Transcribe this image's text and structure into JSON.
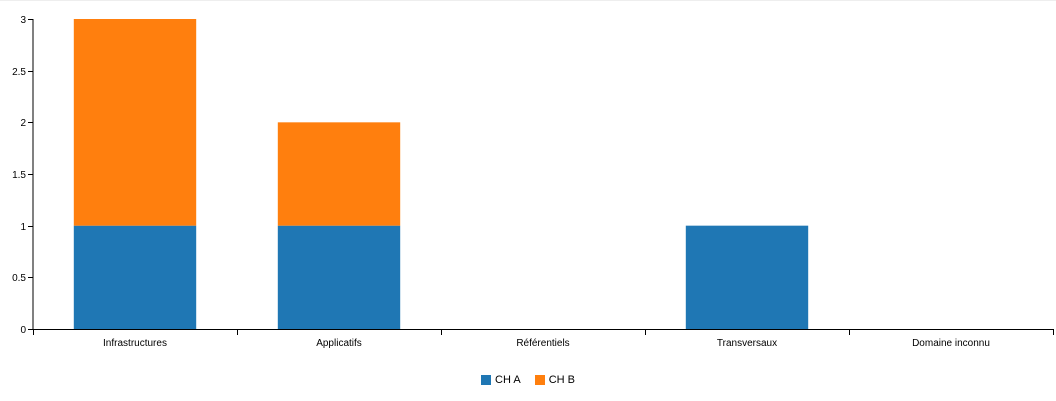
{
  "chart_data": {
    "type": "bar",
    "stacked": true,
    "categories": [
      "Infrastructures",
      "Applicatifs",
      "Référentiels",
      "Transversaux",
      "Domaine inconnu"
    ],
    "series": [
      {
        "name": "CH A",
        "color": "#1f77b4",
        "values": [
          1,
          1,
          0,
          1,
          0
        ]
      },
      {
        "name": "CH B",
        "color": "#ff7f0e",
        "values": [
          2,
          1,
          0,
          0,
          0
        ]
      }
    ],
    "y_ticks": [
      "0",
      "0.5",
      "1",
      "1.5",
      "2",
      "2.5",
      "3"
    ],
    "ylim": [
      0,
      3
    ],
    "grid": false,
    "legend_position": "bottom-center",
    "title": "",
    "xlabel": "",
    "ylabel": ""
  }
}
